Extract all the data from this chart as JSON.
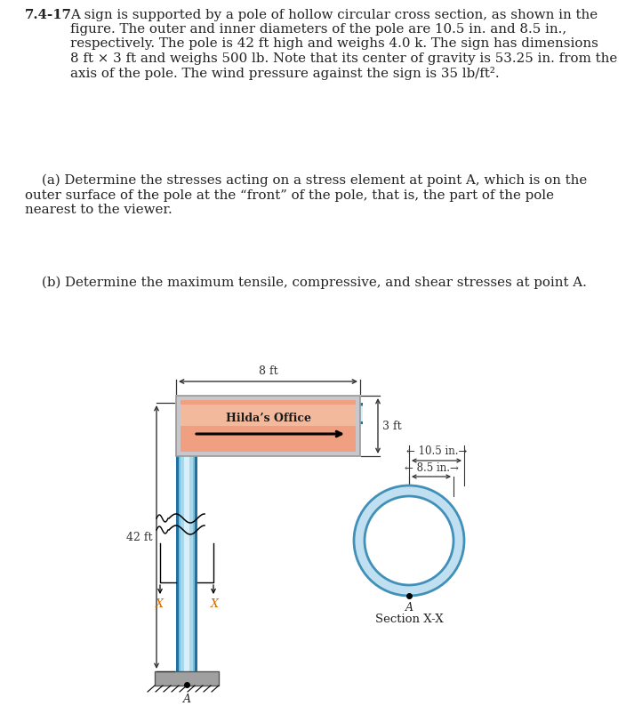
{
  "bg_color": "#ffffff",
  "title_bold": "7.4-17",
  "para1": "A sign is supported by a pole of hollow circular cross section, as shown in the figure. The outer and inner diameters of the pole are 10.5 in. and 8.5 in., respectively. The pole is 42 ft high and weighs 4.0 k. The sign has dimensions 8 ft × 3 ft and weighs 500 lb. Note that its center of gravity is 53.25 in. from the axis of the pole. The wind pressure against the sign is 35 lb/ft².",
  "para2a": "(a) Determine the stresses acting on a stress element at point A, which is on the outer surface of the pole at the “front” of the pole, that is, the part of the pole nearest to the viewer.",
  "para2b": "(b) Determine the maximum tensile, compressive, and shear stresses at point A.",
  "sign_text": "Hilda’s Office",
  "pole_blue_light": "#a8d8ea",
  "pole_blue_mid": "#78c0e0",
  "pole_blue_dark": "#4090b8",
  "pole_blue_edge": "#2070a0",
  "sign_outer": "#bbccdd",
  "sign_gray": "#c8c8cc",
  "sign_salmon_light": "#f5c4a8",
  "sign_salmon": "#f0a080",
  "sign_salmon_dark": "#d87050",
  "section_fill": "#c0dff0",
  "section_stroke": "#4090b8",
  "ground_gray": "#a0a0a0",
  "dim_color": "#333333",
  "text_color": "#222222",
  "xlabel_color": "#cc6600"
}
